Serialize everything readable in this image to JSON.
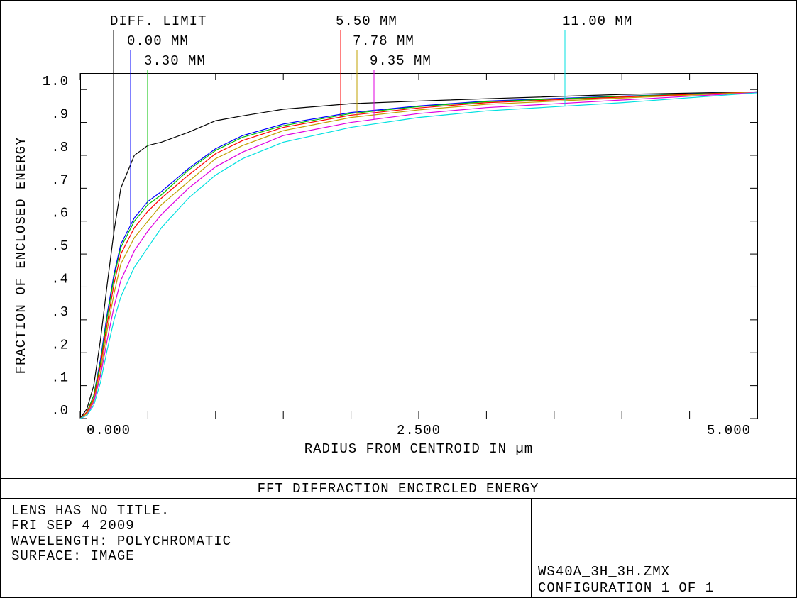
{
  "chart_data": {
    "type": "line",
    "x_label": "RADIUS FROM CENTROID IN µm",
    "y_label": "FRACTION OF ENCLOSED ENERGY",
    "x": [
      0,
      0.05,
      0.1,
      0.15,
      0.2,
      0.25,
      0.3,
      0.4,
      0.5,
      0.6,
      0.8,
      1.0,
      1.2,
      1.5,
      2.0,
      2.5,
      3.0,
      4.0,
      5.0
    ],
    "series": [
      {
        "name": "DIFF. LIMIT",
        "color": "#000000",
        "values": [
          0,
          0.03,
          0.1,
          0.24,
          0.41,
          0.57,
          0.7,
          0.8,
          0.83,
          0.84,
          0.87,
          0.905,
          0.92,
          0.94,
          0.957,
          0.965,
          0.972,
          0.985,
          0.993
        ]
      },
      {
        "name": "0.00 MM",
        "color": "#0000ff",
        "values": [
          0,
          0.02,
          0.07,
          0.18,
          0.32,
          0.44,
          0.53,
          0.61,
          0.66,
          0.69,
          0.76,
          0.82,
          0.86,
          0.895,
          0.93,
          0.95,
          0.965,
          0.98,
          0.993
        ]
      },
      {
        "name": "3.30 MM",
        "color": "#00c000",
        "values": [
          0,
          0.02,
          0.07,
          0.17,
          0.31,
          0.43,
          0.52,
          0.6,
          0.65,
          0.68,
          0.755,
          0.815,
          0.855,
          0.89,
          0.927,
          0.948,
          0.963,
          0.979,
          0.993
        ]
      },
      {
        "name": "5.50 MM",
        "color": "#ff0000",
        "values": [
          0,
          0.02,
          0.06,
          0.16,
          0.29,
          0.41,
          0.5,
          0.58,
          0.63,
          0.67,
          0.74,
          0.805,
          0.845,
          0.885,
          0.922,
          0.944,
          0.96,
          0.977,
          0.993
        ]
      },
      {
        "name": "7.78 MM",
        "color": "#c0a000",
        "values": [
          0,
          0.015,
          0.055,
          0.14,
          0.27,
          0.38,
          0.47,
          0.55,
          0.6,
          0.65,
          0.72,
          0.79,
          0.83,
          0.875,
          0.915,
          0.938,
          0.955,
          0.974,
          0.992
        ]
      },
      {
        "name": "9.35 MM",
        "color": "#e000e0",
        "values": [
          0,
          0.01,
          0.05,
          0.13,
          0.24,
          0.34,
          0.42,
          0.51,
          0.57,
          0.62,
          0.7,
          0.765,
          0.81,
          0.86,
          0.9,
          0.927,
          0.945,
          0.968,
          0.991
        ]
      },
      {
        "name": "11.00 MM",
        "color": "#00e0e0",
        "values": [
          0,
          0.01,
          0.04,
          0.11,
          0.21,
          0.3,
          0.37,
          0.46,
          0.52,
          0.58,
          0.67,
          0.74,
          0.79,
          0.84,
          0.885,
          0.915,
          0.935,
          0.96,
          0.99
        ]
      }
    ],
    "xlim": [
      0,
      5
    ],
    "ylim": [
      0,
      1.05
    ],
    "xticks": [
      {
        "value": 0,
        "label": "0.000"
      },
      {
        "value": 0.5,
        "label": null
      },
      {
        "value": 1,
        "label": null
      },
      {
        "value": 1.5,
        "label": null
      },
      {
        "value": 2,
        "label": null
      },
      {
        "value": 2.5,
        "label": "2.500"
      },
      {
        "value": 3,
        "label": null
      },
      {
        "value": 3.5,
        "label": null
      },
      {
        "value": 4,
        "label": null
      },
      {
        "value": 4.5,
        "label": null
      },
      {
        "value": 5,
        "label": "5.000"
      }
    ],
    "yticks": [
      {
        "value": 0,
        "label": ".0"
      },
      {
        "value": 0.1,
        "label": ".1"
      },
      {
        "value": 0.2,
        "label": ".2"
      },
      {
        "value": 0.3,
        "label": ".3"
      },
      {
        "value": 0.4,
        "label": ".4"
      },
      {
        "value": 0.5,
        "label": ".5"
      },
      {
        "value": 0.6,
        "label": ".6"
      },
      {
        "value": 0.7,
        "label": ".7"
      },
      {
        "value": 0.8,
        "label": ".8"
      },
      {
        "value": 0.9,
        "label": ".9"
      },
      {
        "value": 1.0,
        "label": "1.0"
      }
    ]
  },
  "footer": {
    "title": "FFT DIFFRACTION ENCIRCLED ENERGY",
    "info": [
      "LENS HAS NO TITLE.",
      "FRI SEP 4 2009",
      "WAVELENGTH: POLYCHROMATIC",
      "SURFACE: IMAGE"
    ],
    "file": "WS40A_3H_3H.ZMX",
    "config": "CONFIGURATION 1 OF 1"
  }
}
